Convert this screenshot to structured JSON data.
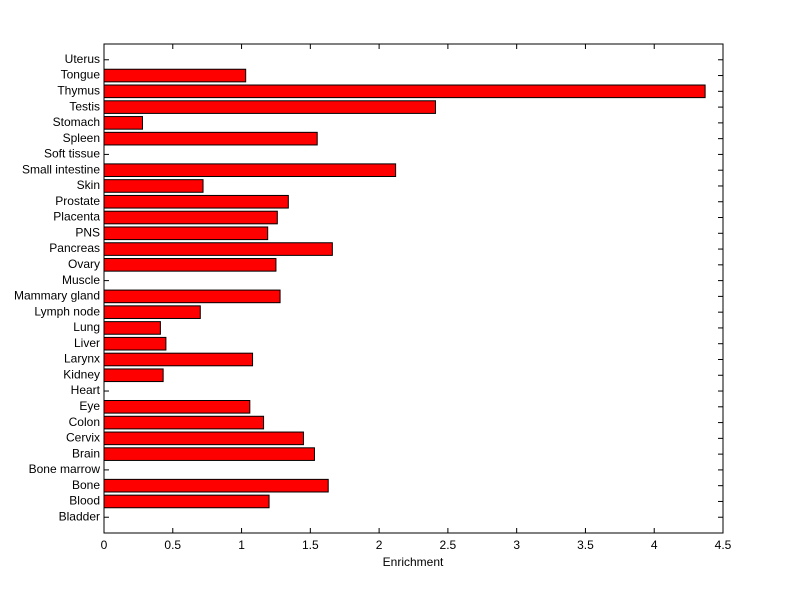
{
  "chart_data": {
    "type": "barh",
    "xlabel": "Enrichment",
    "categories": [
      "Bladder",
      "Blood",
      "Bone",
      "Bone marrow",
      "Brain",
      "Cervix",
      "Colon",
      "Eye",
      "Heart",
      "Kidney",
      "Larynx",
      "Liver",
      "Lung",
      "Lymph node",
      "Mammary gland",
      "Muscle",
      "Ovary",
      "Pancreas",
      "PNS",
      "Placenta",
      "Prostate",
      "Skin",
      "Small intestine",
      "Soft tissue",
      "Spleen",
      "Stomach",
      "Testis",
      "Thymus",
      "Tongue",
      "Uterus"
    ],
    "values": [
      0,
      1.2,
      1.63,
      0,
      1.53,
      1.45,
      1.16,
      1.06,
      0,
      0.43,
      1.08,
      0.45,
      0.41,
      0.7,
      1.28,
      0,
      1.25,
      1.66,
      1.19,
      1.26,
      1.34,
      0.72,
      2.12,
      0,
      1.55,
      0.28,
      2.41,
      4.37,
      1.03,
      0
    ],
    "color": "#ff0000",
    "xlim": [
      0,
      4.5
    ],
    "xticks": [
      0,
      0.5,
      1,
      1.5,
      2,
      2.5,
      3,
      3.5,
      4,
      4.5
    ]
  }
}
